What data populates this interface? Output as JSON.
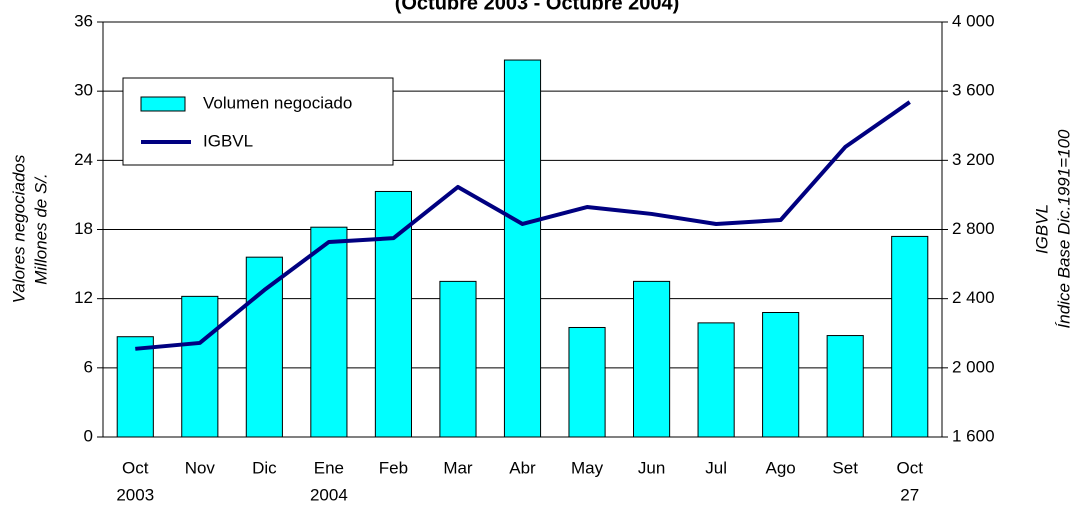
{
  "chart_data": {
    "type": "bar_line",
    "subtitle": "(Octubre 2003 - Octubre 2004)",
    "categories": [
      "Oct",
      "Nov",
      "Dic",
      "Ene",
      "Feb",
      "Mar",
      "Abr",
      "May",
      "Jun",
      "Jul",
      "Ago",
      "Set",
      "Oct"
    ],
    "x_sublabels": [
      "2003",
      null,
      null,
      "2004",
      null,
      null,
      null,
      null,
      null,
      null,
      null,
      null,
      "27"
    ],
    "series": [
      {
        "name": "Volumen negociado",
        "type": "bar",
        "color": "#00ffff",
        "values": [
          8.7,
          12.2,
          15.6,
          18.2,
          21.3,
          13.5,
          32.7,
          9.5,
          13.5,
          9.9,
          10.8,
          8.8,
          17.4
        ]
      },
      {
        "name": "IGBVL",
        "type": "line",
        "axis": "y2",
        "color": "#000080",
        "values": [
          2110,
          2144,
          2450,
          2728,
          2750,
          3046,
          2832,
          2930,
          2890,
          2832,
          2855,
          3277,
          3537
        ]
      }
    ],
    "ylabel": [
      "Valores negociados",
      "Millones de S/."
    ],
    "y2label": [
      "IGBVL",
      "Índice Base Dic.1991=100"
    ],
    "ylim": [
      0,
      36
    ],
    "yticks": [
      0,
      6,
      12,
      18,
      24,
      30,
      36
    ],
    "y2lim": [
      1600,
      4000
    ],
    "y2ticks": [
      {
        "value": 1600,
        "label": "1 600"
      },
      {
        "value": 2000,
        "label": "2 000"
      },
      {
        "value": 2400,
        "label": "2 400"
      },
      {
        "value": 2800,
        "label": "2 800"
      },
      {
        "value": 3200,
        "label": "3 200"
      },
      {
        "value": 3600,
        "label": "3 600"
      },
      {
        "value": 4000,
        "label": "4 000"
      }
    ],
    "grid": true,
    "legend": "upper left"
  }
}
